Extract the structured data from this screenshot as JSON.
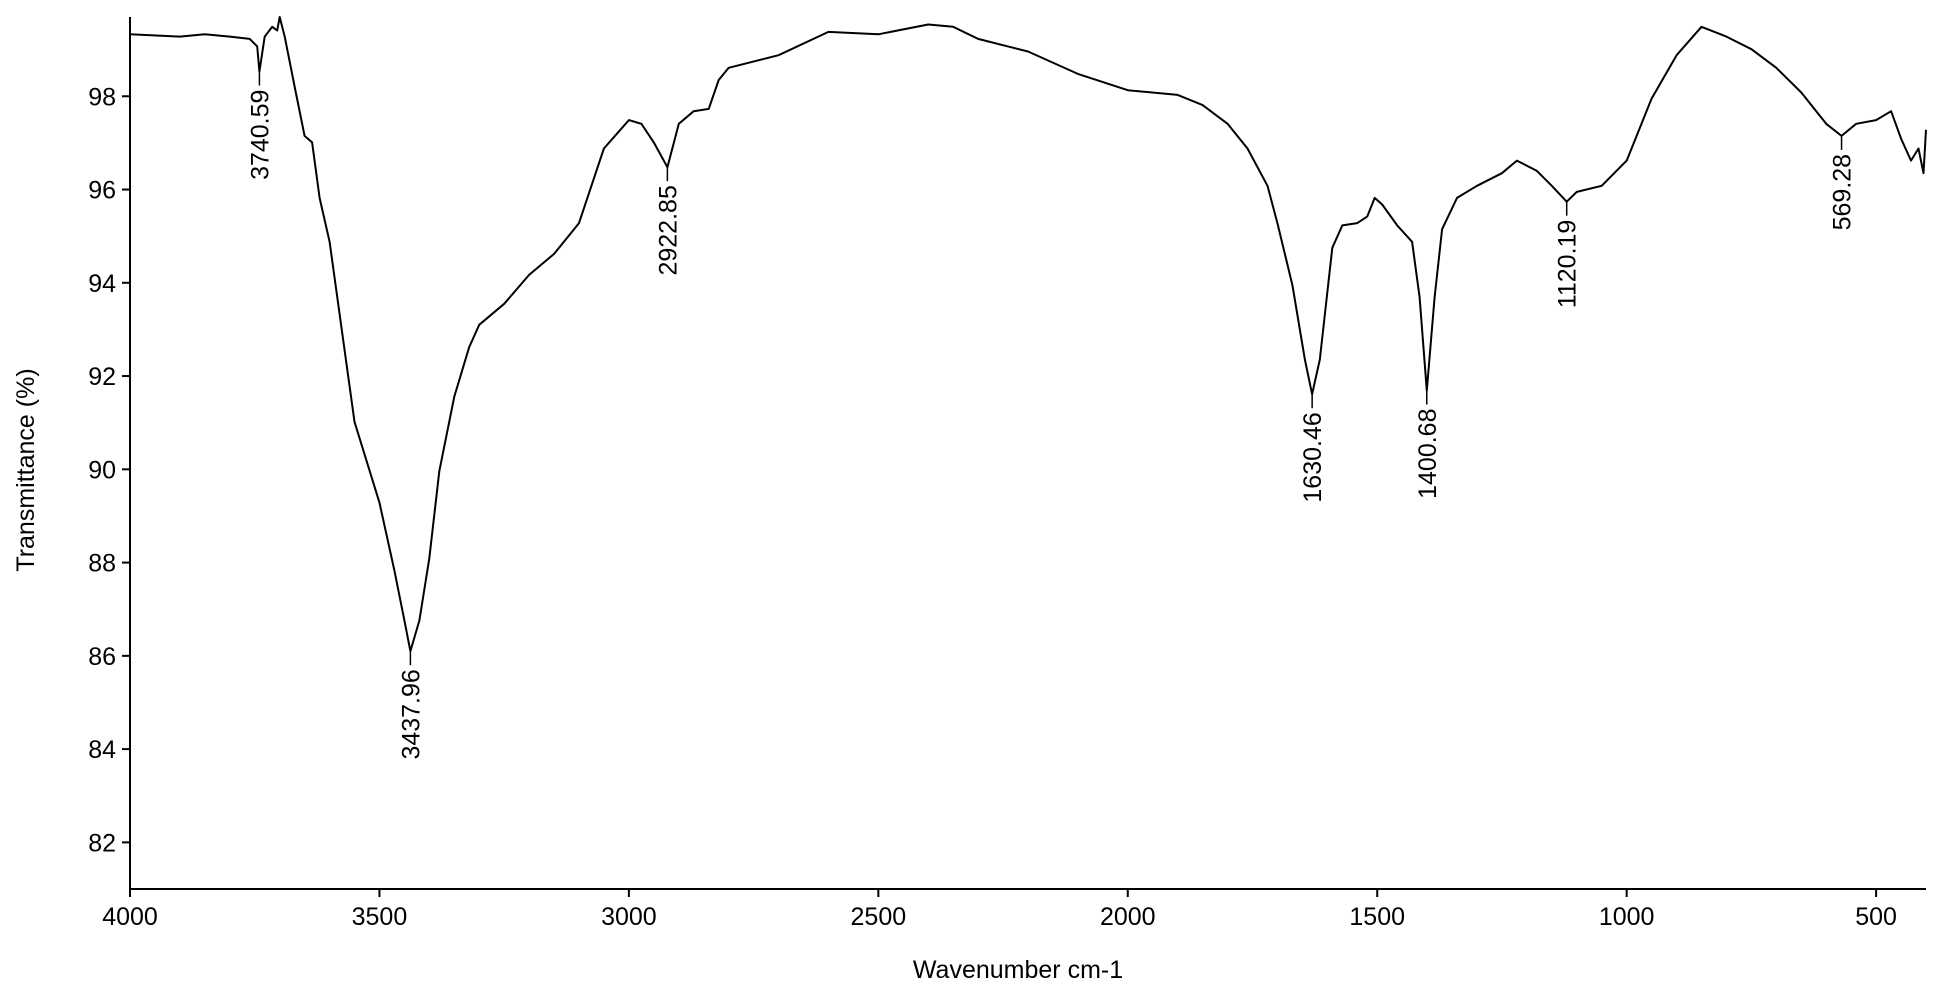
{
  "chart_data": {
    "type": "line",
    "xlabel": "Wavenumber cm-1",
    "ylabel": "Transmittance (%)",
    "x": [
      4000,
      3900,
      3850,
      3800,
      3760,
      3745,
      3740.59,
      3730,
      3715,
      3705,
      3700,
      3690,
      3670,
      3650,
      3635,
      3620,
      3600,
      3550,
      3500,
      3470,
      3450,
      3437.96,
      3420,
      3400,
      3380,
      3350,
      3320,
      3300,
      3250,
      3200,
      3150,
      3100,
      3050,
      3000,
      2975,
      2950,
      2922.85,
      2900,
      2870,
      2840,
      2820,
      2800,
      2700,
      2600,
      2500,
      2400,
      2350,
      2300,
      2200,
      2100,
      2000,
      1900,
      1850,
      1800,
      1760,
      1720,
      1700,
      1670,
      1645,
      1630.46,
      1615,
      1590,
      1570,
      1540,
      1520,
      1505,
      1490,
      1460,
      1430,
      1415,
      1400.68,
      1385,
      1370,
      1340,
      1300,
      1250,
      1220,
      1180,
      1150,
      1120.19,
      1100,
      1050,
      1000,
      950,
      900,
      850,
      800,
      750,
      700,
      650,
      600,
      569.28,
      540,
      500,
      470,
      450,
      430,
      415,
      405,
      400
    ],
    "values": [
      99.33,
      99.28,
      99.33,
      99.28,
      99.23,
      99.07,
      98.53,
      99.28,
      99.49,
      99.41,
      99.7,
      99.28,
      98.21,
      97.15,
      97.01,
      95.82,
      94.88,
      91.02,
      89.29,
      87.83,
      86.76,
      86.1,
      86.76,
      88.09,
      89.96,
      91.56,
      92.62,
      93.1,
      93.55,
      94.17,
      94.62,
      95.28,
      96.88,
      97.49,
      97.41,
      97.01,
      96.48,
      97.41,
      97.68,
      97.73,
      98.35,
      98.61,
      98.88,
      99.38,
      99.33,
      99.54,
      99.49,
      99.23,
      98.96,
      98.48,
      98.13,
      98.03,
      97.81,
      97.41,
      96.88,
      96.08,
      95.28,
      93.95,
      92.35,
      91.61,
      92.35,
      94.75,
      95.23,
      95.28,
      95.42,
      95.82,
      95.68,
      95.23,
      94.88,
      93.69,
      91.69,
      93.69,
      95.15,
      95.82,
      96.08,
      96.35,
      96.62,
      96.4,
      96.08,
      95.74,
      95.95,
      96.08,
      96.62,
      97.95,
      98.88,
      99.49,
      99.28,
      99.01,
      98.61,
      98.08,
      97.41,
      97.15,
      97.41,
      97.49,
      97.68,
      97.09,
      96.62,
      96.88,
      96.35,
      97.28
    ],
    "color": "#000000",
    "peaks": [
      {
        "x": 3740.59,
        "y": 98.53
      },
      {
        "x": 3437.96,
        "y": 86.1
      },
      {
        "x": 2922.85,
        "y": 96.48
      },
      {
        "x": 1630.46,
        "y": 91.61
      },
      {
        "x": 1400.68,
        "y": 91.69
      },
      {
        "x": 1120.19,
        "y": 95.74
      },
      {
        "x": 569.28,
        "y": 97.15
      }
    ],
    "xlim": [
      4000,
      400
    ],
    "ylim": [
      81,
      99.7
    ],
    "xticks": [
      4000,
      3500,
      3000,
      2500,
      2000,
      1500,
      1000,
      500
    ],
    "yticks": [
      82,
      84,
      86,
      88,
      90,
      92,
      94,
      96,
      98
    ]
  }
}
